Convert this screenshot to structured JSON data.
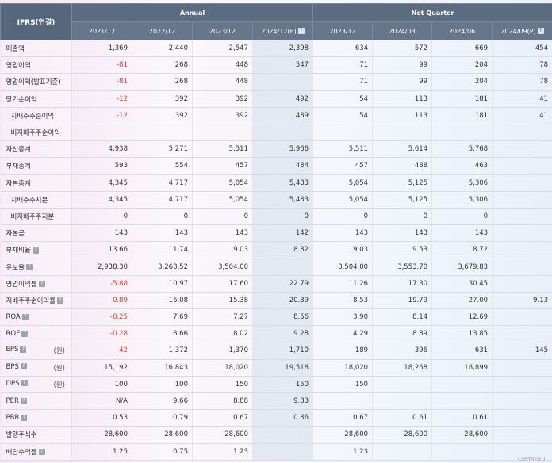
{
  "header": {
    "corner": "IFRS(연결)",
    "group_annual": "Annual",
    "group_quarter": "Net Quarter",
    "periods": [
      "2021/12",
      "2022/12",
      "2023/12",
      "2024/12(E)",
      "2023/12",
      "2024/03",
      "2024/06",
      "2024/09(P)"
    ],
    "period_icons": [
      false,
      false,
      false,
      true,
      false,
      false,
      false,
      true
    ]
  },
  "rows": [
    {
      "label": "매출액",
      "indent": false,
      "icon": false,
      "unit": "",
      "values": [
        "1,369",
        "2,440",
        "2,547",
        "2,398",
        "634",
        "572",
        "669",
        "454"
      ]
    },
    {
      "label": "영업이익",
      "indent": false,
      "icon": false,
      "unit": "",
      "values": [
        "-81",
        "268",
        "448",
        "547",
        "71",
        "99",
        "204",
        "78"
      ]
    },
    {
      "label": "영업이익(발표기준)",
      "indent": false,
      "icon": false,
      "unit": "",
      "values": [
        "-81",
        "268",
        "448",
        "",
        "71",
        "99",
        "204",
        "78"
      ]
    },
    {
      "label": "당기순이익",
      "indent": false,
      "icon": false,
      "unit": "",
      "values": [
        "-12",
        "392",
        "392",
        "492",
        "54",
        "113",
        "181",
        "41"
      ]
    },
    {
      "label": "지배주주순이익",
      "indent": true,
      "icon": false,
      "unit": "",
      "values": [
        "-12",
        "392",
        "392",
        "489",
        "54",
        "113",
        "181",
        "41"
      ]
    },
    {
      "label": "비지배주주순이익",
      "indent": true,
      "icon": false,
      "unit": "",
      "values": [
        "",
        "",
        "",
        "",
        "",
        "",
        "",
        ""
      ]
    },
    {
      "label": "자산총계",
      "indent": false,
      "icon": false,
      "unit": "",
      "values": [
        "4,938",
        "5,271",
        "5,511",
        "5,966",
        "5,511",
        "5,614",
        "5,768",
        ""
      ]
    },
    {
      "label": "부채총계",
      "indent": false,
      "icon": false,
      "unit": "",
      "values": [
        "593",
        "554",
        "457",
        "484",
        "457",
        "488",
        "463",
        ""
      ]
    },
    {
      "label": "자본총계",
      "indent": false,
      "icon": false,
      "unit": "",
      "values": [
        "4,345",
        "4,717",
        "5,054",
        "5,483",
        "5,054",
        "5,125",
        "5,306",
        ""
      ]
    },
    {
      "label": "지배주주지분",
      "indent": true,
      "icon": false,
      "unit": "",
      "values": [
        "4,345",
        "4,717",
        "5,054",
        "5,483",
        "5,054",
        "5,125",
        "5,306",
        ""
      ]
    },
    {
      "label": "비지배주주지분",
      "indent": true,
      "icon": false,
      "unit": "",
      "values": [
        "0",
        "0",
        "0",
        "0",
        "0",
        "0",
        "0",
        ""
      ]
    },
    {
      "label": "자본금",
      "indent": false,
      "icon": false,
      "unit": "",
      "values": [
        "143",
        "143",
        "143",
        "142",
        "143",
        "143",
        "143",
        ""
      ]
    },
    {
      "label": "부채비율",
      "indent": false,
      "icon": true,
      "unit": "",
      "values": [
        "13.66",
        "11.74",
        "9.03",
        "8.82",
        "9.03",
        "9.53",
        "8.72",
        ""
      ]
    },
    {
      "label": "유보율",
      "indent": false,
      "icon": true,
      "unit": "",
      "values": [
        "2,938.30",
        "3,268.52",
        "3,504.00",
        "",
        "3,504.00",
        "3,553.70",
        "3,679.83",
        ""
      ]
    },
    {
      "label": "영업이익률",
      "indent": false,
      "icon": true,
      "unit": "",
      "values": [
        "-5.88",
        "10.97",
        "17.60",
        "22.79",
        "11.26",
        "17.30",
        "30.45",
        ""
      ]
    },
    {
      "label": "지배주주순이익률",
      "indent": false,
      "icon": true,
      "unit": "",
      "values": [
        "-0.89",
        "16.08",
        "15.38",
        "20.39",
        "8.53",
        "19.79",
        "27.00",
        "9.13"
      ]
    },
    {
      "label": "ROA",
      "indent": false,
      "icon": true,
      "unit": "",
      "values": [
        "-0.25",
        "7.69",
        "7.27",
        "8.56",
        "3.90",
        "8.14",
        "12.69",
        ""
      ]
    },
    {
      "label": "ROE",
      "indent": false,
      "icon": true,
      "unit": "",
      "values": [
        "-0.28",
        "8.66",
        "8.02",
        "9.28",
        "4.29",
        "8.89",
        "13.85",
        ""
      ]
    },
    {
      "label": "EPS",
      "indent": false,
      "icon": true,
      "unit": "(원)",
      "values": [
        "-42",
        "1,372",
        "1,370",
        "1,710",
        "189",
        "396",
        "631",
        "145"
      ]
    },
    {
      "label": "BPS",
      "indent": false,
      "icon": true,
      "unit": "(원)",
      "values": [
        "15,192",
        "16,843",
        "18,020",
        "19,518",
        "18,020",
        "18,268",
        "18,899",
        ""
      ]
    },
    {
      "label": "DPS",
      "indent": false,
      "icon": true,
      "unit": "(원)",
      "values": [
        "100",
        "100",
        "150",
        "150",
        "150",
        "",
        "",
        ""
      ]
    },
    {
      "label": "PER",
      "indent": false,
      "icon": true,
      "unit": "",
      "values": [
        "N/A",
        "9.66",
        "8.88",
        "9.83",
        "",
        "",
        "",
        ""
      ]
    },
    {
      "label": "PBR",
      "indent": false,
      "icon": true,
      "unit": "",
      "values": [
        "0.53",
        "0.79",
        "0.67",
        "0.86",
        "0.67",
        "0.61",
        "0.61",
        ""
      ]
    },
    {
      "label": "발행주식수",
      "indent": false,
      "icon": false,
      "unit": "",
      "values": [
        "28,600",
        "28,600",
        "28,600",
        "",
        "28,600",
        "28,600",
        "28,600",
        ""
      ]
    },
    {
      "label": "배당수익률",
      "indent": false,
      "icon": true,
      "unit": "",
      "values": [
        "1.25",
        "0.75",
        "1.23",
        "",
        "1.23",
        "",
        "",
        ""
      ]
    }
  ],
  "footer": {
    "text": "COPYRIGHT"
  },
  "colors": {
    "header_bg": "#5b6b80",
    "negative": "#e03a2f",
    "estimate_bg": "#d3dcea"
  }
}
